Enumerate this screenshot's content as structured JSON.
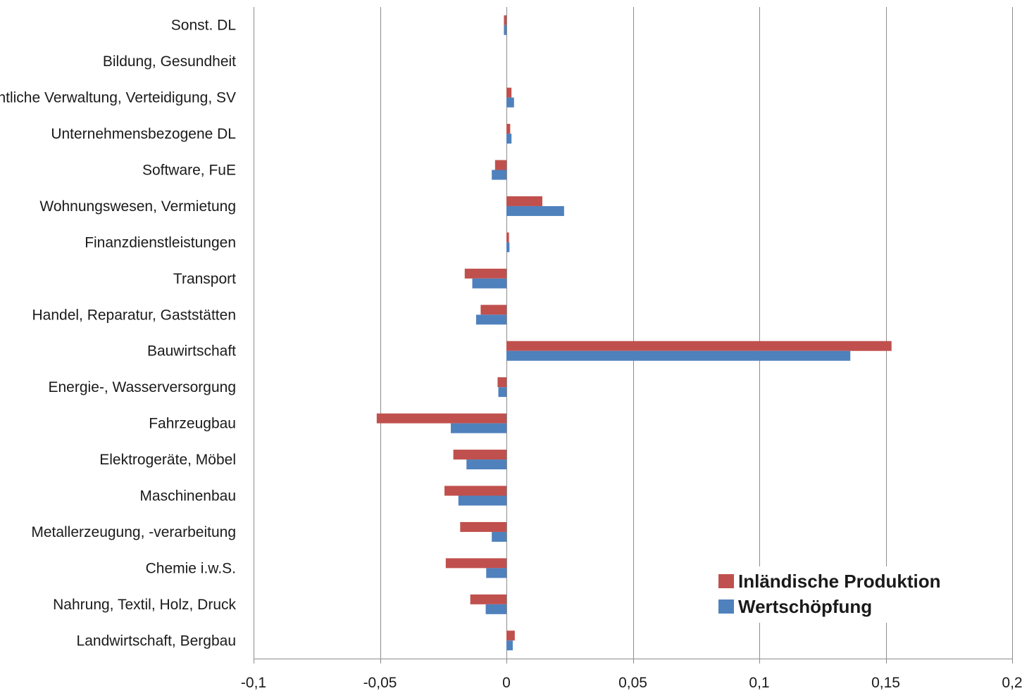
{
  "chart_data": {
    "type": "bar",
    "orientation": "horizontal",
    "categories": [
      "Landwirtschaft, Bergbau",
      "Nahrung, Textil, Holz, Druck",
      "Chemie i.w.S.",
      "Metallerzeugung, -verarbeitung",
      "Maschinenbau",
      "Elektrogeräte, Möbel",
      "Fahrzeugbau",
      "Energie-, Wasserversorgung",
      "Bauwirtschaft",
      "Handel, Reparatur, Gaststätten",
      "Transport",
      "Finanzdienstleistungen",
      "Wohnungswesen, Vermietung",
      "Software, FuE",
      "Unternehmensbezogene DL",
      "Öffentliche Verwaltung, Verteidigung, SV",
      "Bildung, Gesundheit",
      "Sonst. DL"
    ],
    "series": [
      {
        "name": "Inländische Produktion",
        "color": "#c0504d",
        "values": [
          0.0033,
          -0.0143,
          -0.024,
          -0.0183,
          -0.0245,
          -0.021,
          -0.0513,
          -0.0035,
          0.1523,
          -0.0102,
          -0.0165,
          0.001,
          0.0142,
          -0.0045,
          0.0015,
          0.002,
          0.0,
          -0.001
        ]
      },
      {
        "name": "Wertschöpfung",
        "color": "#4f81bd",
        "values": [
          0.0025,
          -0.0082,
          -0.008,
          -0.0058,
          -0.019,
          -0.0158,
          -0.022,
          -0.0032,
          0.136,
          -0.012,
          -0.0135,
          0.0012,
          0.0228,
          -0.0058,
          0.002,
          0.003,
          0.0,
          -0.001
        ]
      }
    ],
    "xlim": [
      -0.1,
      0.2
    ],
    "xticks": [
      -0.1,
      -0.05,
      0,
      0.05,
      0.1,
      0.15,
      0.2
    ],
    "xtick_labels": [
      "-0,1",
      "-0,05",
      "0",
      "0,05",
      "0,1",
      "0,15",
      "0,2"
    ],
    "title": "",
    "xlabel": "",
    "ylabel": "",
    "grid": "vertical",
    "legend_position": "bottom-right"
  }
}
